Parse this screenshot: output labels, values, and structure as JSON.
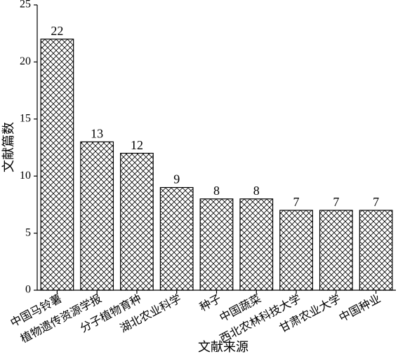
{
  "chart_data": {
    "type": "bar",
    "y_label": "文献篇数",
    "x_label": "文献来源",
    "categories": [
      "中国马铃薯",
      "植物遗传资源学报",
      "分子植物育种",
      "湖北农业科学",
      "种子",
      "中国蔬菜",
      "西北农林科技大学",
      "甘肃农业大学",
      "中国种业"
    ],
    "values": [
      22,
      13,
      12,
      9,
      8,
      8,
      7,
      7,
      7
    ],
    "color": "#000000",
    "hatch": "crosshatch",
    "ylim": [
      0,
      25
    ],
    "yticks": [
      0,
      5,
      10,
      15,
      20,
      25
    ],
    "grid": false
  }
}
